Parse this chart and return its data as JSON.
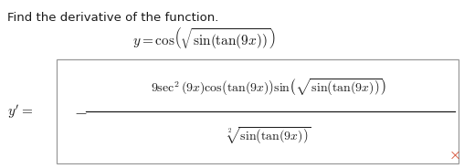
{
  "background_color": "#ffffff",
  "text_color": "#1a1a1a",
  "red_x_color": "#cc2200",
  "header_text": "Find the derivative of the function.",
  "header_fontsize": 9.5,
  "function_latex": "$y = \\cos\\!\\left(\\sqrt{\\sin(\\tan(9x))}\\right)$",
  "function_fontsize": 11,
  "derivative_label_latex": "$y^{\\prime} =$",
  "derivative_label_fontsize": 11,
  "minus_latex": "$-$",
  "minus_fontsize": 13,
  "numerator_latex": "$9\\sec^{2}(9x)\\cos\\!\\left(\\tan(9x)\\right)\\sin\\!\\left(\\sqrt{\\sin\\!\\left(\\tan(9x)\\right)}\\right)$",
  "numerator_fontsize": 10,
  "denominator_latex": "$\\sqrt[2]{\\sin\\!\\left(\\tan(9x)\\right)}$",
  "denominator_fontsize": 10,
  "fig_width": 5.08,
  "fig_height": 1.84,
  "dpi": 100
}
